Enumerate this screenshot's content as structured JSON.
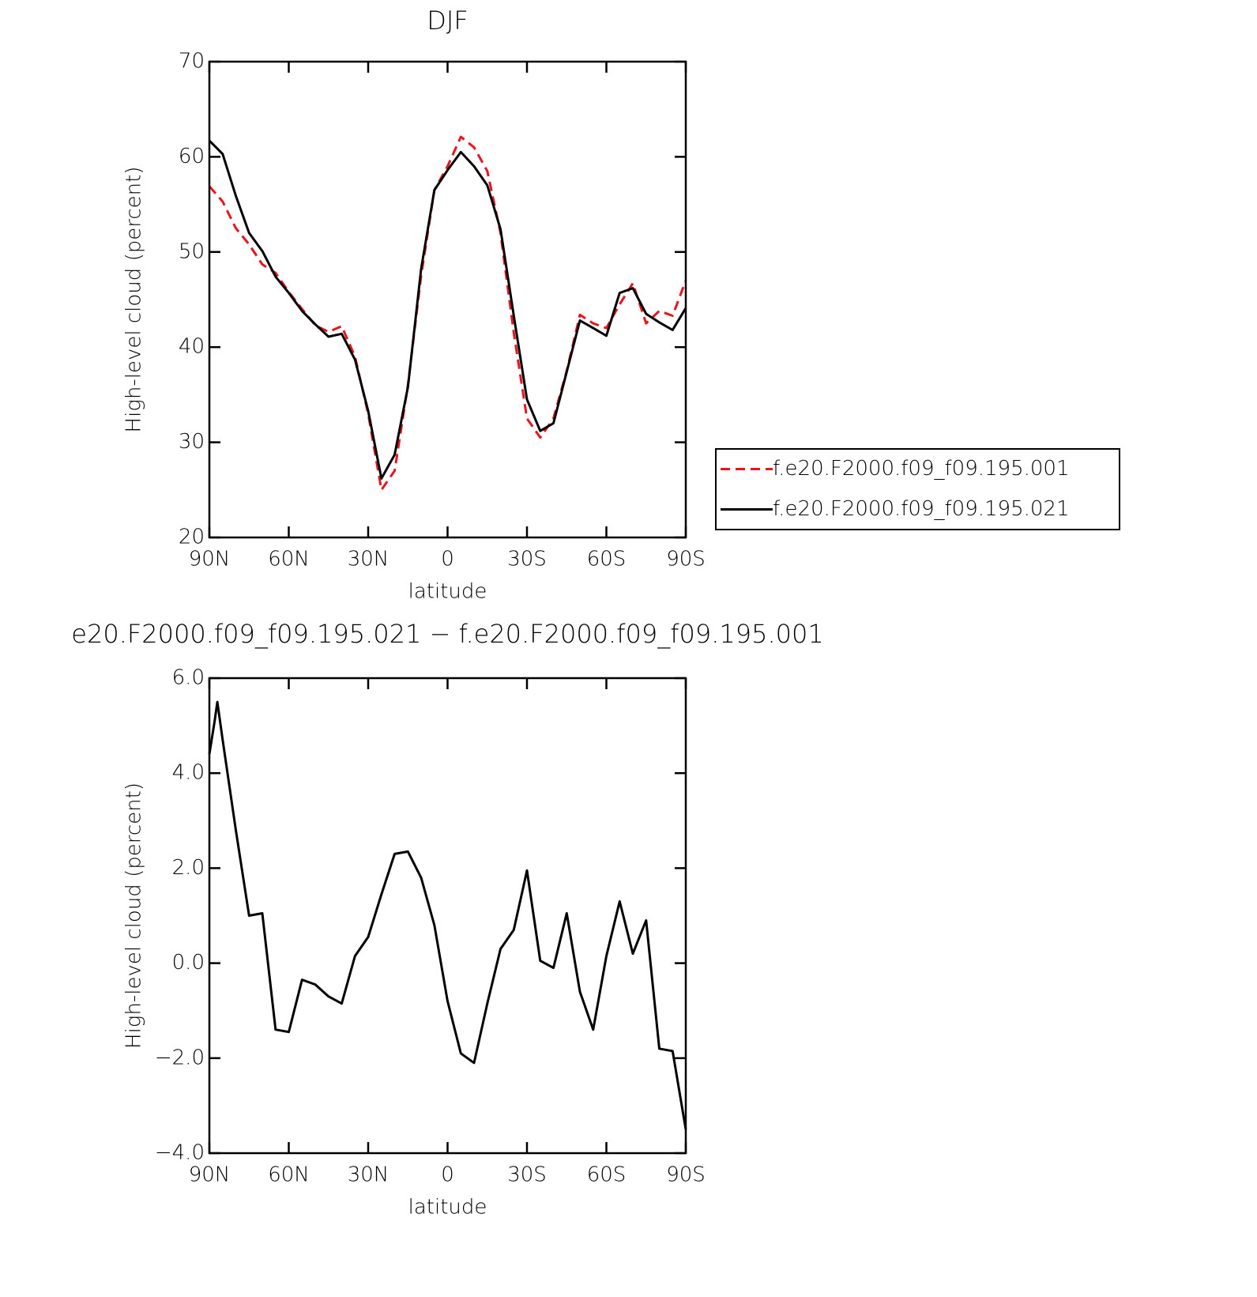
{
  "chart_data": [
    {
      "type": "line",
      "title": "DJF",
      "xlabel": "latitude",
      "ylabel": "High-level cloud (percent)",
      "x": [
        90,
        85,
        80,
        75,
        70,
        65,
        60,
        55,
        50,
        45,
        40,
        35,
        30,
        25,
        20,
        15,
        10,
        5,
        0,
        -5,
        -10,
        -15,
        -20,
        -25,
        -30,
        -35,
        -40,
        -45,
        -50,
        -55,
        -60,
        -65,
        -70,
        -75,
        -80,
        -85,
        -90
      ],
      "series": [
        {
          "name": "f.e20.F2000.f09_f09.195.001",
          "color": "#e8141e",
          "style": "dashed",
          "values": [
            56.9,
            55.3,
            52.5,
            50.8,
            48.7,
            47.8,
            45.8,
            44.0,
            42.3,
            41.6,
            42.2,
            39.0,
            33.0,
            25.0,
            27.0,
            36.0,
            47.5,
            56.5,
            59.0,
            62.1,
            61.0,
            58.5,
            52.0,
            41.5,
            32.5,
            30.5,
            32.5,
            37.5,
            43.4,
            42.5,
            42.0,
            44.5,
            46.7,
            42.5,
            43.8,
            43.3,
            47.0
          ]
        },
        {
          "name": "f.e20.F2000.f09_f09.195.021",
          "color": "#000000",
          "style": "solid",
          "values": [
            61.7,
            60.3,
            55.9,
            52.0,
            50.1,
            47.4,
            45.7,
            43.8,
            42.4,
            41.1,
            41.4,
            38.7,
            33.3,
            26.2,
            28.7,
            35.8,
            48.2,
            56.5,
            58.6,
            60.5,
            59.0,
            57.0,
            52.4,
            43.3,
            34.5,
            31.2,
            32.0,
            37.4,
            42.8,
            42.0,
            41.2,
            45.7,
            46.2,
            43.5,
            42.6,
            41.8,
            44.1
          ]
        }
      ],
      "xlim": [
        90,
        -90
      ],
      "xticks": [
        {
          "value": 90,
          "label": "90N"
        },
        {
          "value": 60,
          "label": "60N"
        },
        {
          "value": 30,
          "label": "30N"
        },
        0,
        {
          "value": -30,
          "label": "30S"
        },
        {
          "value": -60,
          "label": "60S"
        },
        {
          "value": -90,
          "label": "90S"
        }
      ],
      "ylim": [
        20,
        70
      ],
      "yticks": [
        20,
        30,
        40,
        50,
        60,
        70
      ],
      "grid": false,
      "legend": "right"
    },
    {
      "type": "line",
      "title": "e20.F2000.f09_f09.195.021 − f.e20.F2000.f09_f09.195.001",
      "xlabel": "latitude",
      "ylabel": "High-level cloud (percent)",
      "x": [
        90,
        88,
        87,
        85,
        80,
        75,
        70,
        65,
        60,
        55,
        50,
        45,
        40,
        35,
        30,
        25,
        20,
        15,
        10,
        5,
        0,
        -5,
        -10,
        -15,
        -20,
        -25,
        -30,
        -35,
        -40,
        -45,
        -50,
        -55,
        -60,
        -65,
        -70,
        -75,
        -80,
        -85,
        -90
      ],
      "series": [
        {
          "color": "#000000",
          "style": "solid",
          "values": [
            4.4,
            5.1,
            5.5,
            4.7,
            2.8,
            1.0,
            1.05,
            -1.4,
            -1.45,
            -0.35,
            -0.45,
            -0.7,
            -0.85,
            0.15,
            0.55,
            1.45,
            2.3,
            2.35,
            1.8,
            0.8,
            -0.8,
            -1.9,
            -2.1,
            -0.85,
            0.3,
            0.7,
            1.95,
            0.05,
            -0.1,
            1.05,
            -0.6,
            -1.4,
            0.15,
            1.3,
            0.2,
            0.9,
            -1.8,
            -1.85,
            -3.5
          ]
        }
      ],
      "xlim": [
        90,
        -90
      ],
      "xticks": [
        {
          "value": 90,
          "label": "90N"
        },
        {
          "value": 60,
          "label": "60N"
        },
        {
          "value": 30,
          "label": "30N"
        },
        0,
        {
          "value": -30,
          "label": "30S"
        },
        {
          "value": -60,
          "label": "60S"
        },
        {
          "value": -90,
          "label": "90S"
        }
      ],
      "ylim": [
        -4,
        6
      ],
      "yticks": [
        {
          "value": -4,
          "label": "−4.0"
        },
        {
          "value": -2,
          "label": "−2.0"
        },
        {
          "value": 0,
          "label": "0.0"
        },
        {
          "value": 2,
          "label": "2.0"
        },
        {
          "value": 4,
          "label": "4.0"
        },
        {
          "value": 6,
          "label": "6.0"
        }
      ],
      "grid": false
    }
  ]
}
